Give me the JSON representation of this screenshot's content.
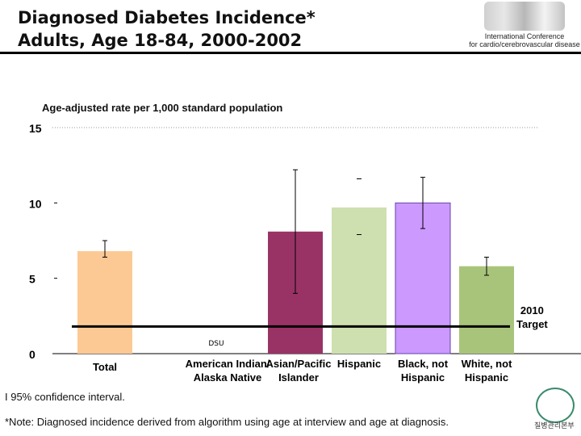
{
  "title_line1": "Diagnosed Diabetes Incidence*",
  "title_line2": "Adults, Age 18-84, 2000-2002",
  "logo": {
    "line1": "International Conference",
    "line2": "for cardio/cerebrovascular disease"
  },
  "footer": {
    "ci_note": "I  95% confidence interval.",
    "note": "*Note: Diagnosed incidence derived from algorithm using age at interview and age at diagnosis.",
    "seal_text": "질병관리본부"
  },
  "chart_data": {
    "type": "bar",
    "ylabel": "Age-adjusted rate per 1,000 standard population",
    "ylim": [
      0,
      15
    ],
    "yticks": [
      "0",
      "5",
      "10",
      "15"
    ],
    "categories": [
      [
        "Total"
      ],
      [
        "American Indian/",
        "Alaska Native"
      ],
      [
        "Asian/Pacific",
        "Islander"
      ],
      [
        "Hispanic"
      ],
      [
        "Black, not",
        "Hispanic"
      ],
      [
        "White, not",
        "Hispanic"
      ]
    ],
    "values": [
      6.8,
      null,
      8.1,
      9.7,
      10.0,
      5.8
    ],
    "ci_upper": [
      7.5,
      null,
      12.2,
      11.6,
      11.7,
      6.4
    ],
    "ci_lower": [
      6.4,
      null,
      4.0,
      7.9,
      8.3,
      5.2
    ],
    "value_labels": [
      "",
      "DSU",
      "",
      "",
      "",
      ""
    ],
    "colors": [
      "#fcc994",
      null,
      "#993366",
      "#cfe0b0",
      "#cc99ff",
      "#a8c47a"
    ],
    "target": {
      "value": 1.8,
      "label_line1": "2010",
      "label_line2": "Target"
    },
    "grid": "dotted line at 15 only"
  }
}
